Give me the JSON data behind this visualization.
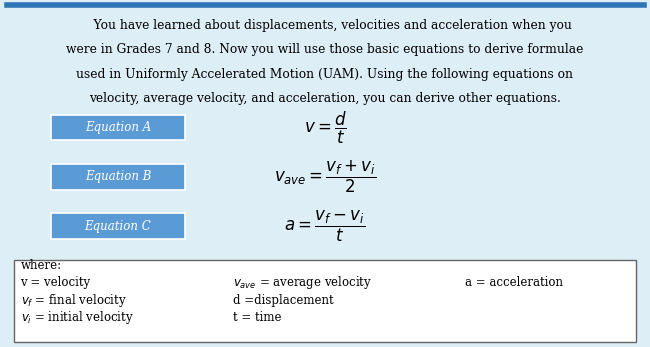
{
  "bg_color": "#ddeef6",
  "text_color": "#000000",
  "box_bg": "#5b9bd5",
  "box_text_color": "#ffffff",
  "border_color": "#2e75b6",
  "paragraph_lines": [
    "    You have learned about displacements, velocities and acceleration when you",
    "were in Grades 7 and 8. Now you will use those basic equations to derive formulae",
    "used in Uniformly Accelerated Motion (UAM). Using the following equations on",
    "velocity, average velocity, and acceleration, you can derive other equations."
  ],
  "equations": [
    {
      "label": "Equation A",
      "formula": "$v = \\dfrac{d}{t}$"
    },
    {
      "label": "Equation B",
      "formula": "$v_{ave} = \\dfrac{v_f + v_i}{2}$"
    },
    {
      "label": "Equation C",
      "formula": "$a = \\dfrac{v_f - v_i}{t}$"
    }
  ],
  "where_col1": [
    "where:",
    "v = velocity",
    "$v_f$ = final velocity",
    "$v_i$ = initial velocity"
  ],
  "where_col2": [
    "",
    "$v_{ave}$ = average velocity",
    "d =displacement",
    "t = time"
  ],
  "where_col3": [
    "",
    "a = acceleration",
    "",
    ""
  ],
  "eq_label_fontsize": 8.5,
  "eq_formula_fontsize": 12,
  "where_fontsize": 8.5,
  "para_fontsize": 8.8
}
